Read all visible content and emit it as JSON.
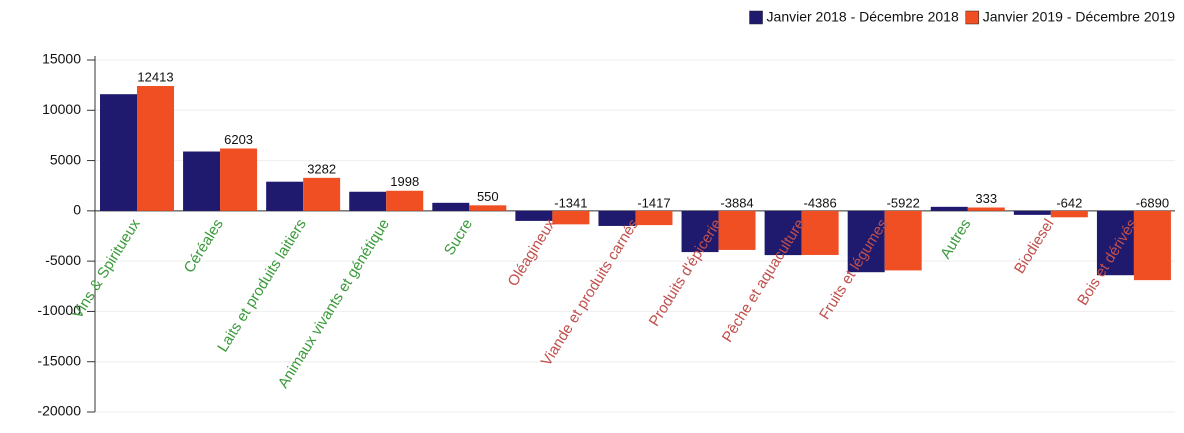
{
  "chart_data": {
    "type": "bar",
    "categories": [
      "Vins & Spiritueux",
      "Céréales",
      "Laits et produits laitiers",
      "Animaux vivants et génétique",
      "Sucre",
      "Oléagineux",
      "Viande et produits carnés",
      "Produits d'épicerie",
      "Pêche et aquaculture",
      "Fruits et légumes",
      "Autres",
      "Biodiesel",
      "Bois et dérivés"
    ],
    "category_colors": [
      "#3a9a3a",
      "#3a9a3a",
      "#3a9a3a",
      "#3a9a3a",
      "#3a9a3a",
      "#c0504d",
      "#c0504d",
      "#c0504d",
      "#c0504d",
      "#c0504d",
      "#3a9a3a",
      "#c0504d",
      "#c0504d"
    ],
    "series": [
      {
        "name": "Janvier 2018 - Décembre 2018",
        "color": "#1f1a6e",
        "values": [
          11600,
          5900,
          2900,
          1900,
          800,
          -1000,
          -1500,
          -4100,
          -4400,
          -6100,
          400,
          -400,
          -6400
        ]
      },
      {
        "name": "Janvier 2019 - Décembre 2019",
        "color": "#f04e23",
        "values": [
          12413,
          6203,
          3282,
          1998,
          550,
          -1341,
          -1417,
          -3884,
          -4386,
          -5922,
          333,
          -642,
          -6890
        ]
      }
    ],
    "ylim": [
      -20000,
      15000
    ],
    "yticks": [
      -20000,
      -15000,
      -10000,
      -5000,
      0,
      5000,
      10000,
      15000
    ],
    "grid": true,
    "legend": "top-right"
  }
}
